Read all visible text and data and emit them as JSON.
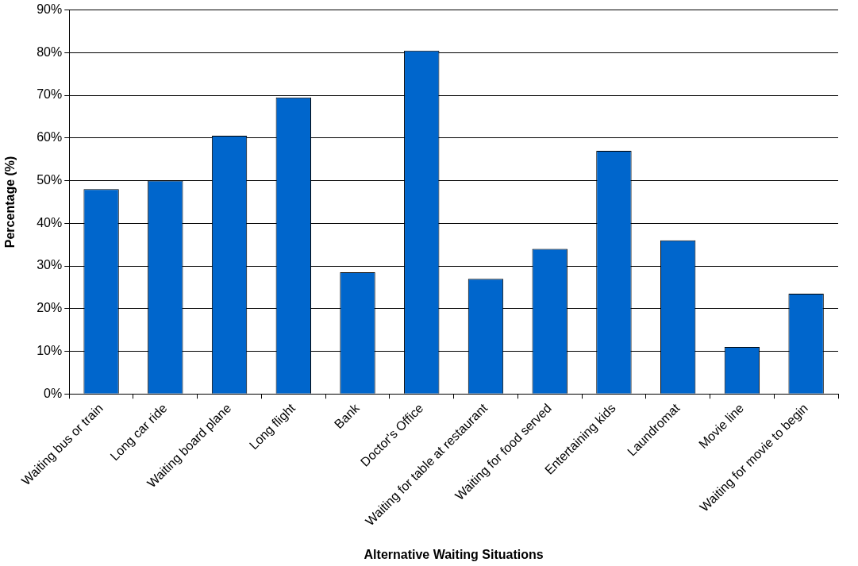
{
  "chart_data": {
    "type": "bar",
    "xlabel": "Alternative Waiting Situations",
    "ylabel": "Percentage (%)",
    "categories": [
      "Waiting bus or train",
      "Long car ride",
      "Waiting board plane",
      "Long flight",
      "Bank",
      "Doctor's Office",
      "Waiting for table at restaurant",
      "Waiting for food served",
      "Entertaining kids",
      "Laundromat",
      "Movie line",
      "Waiting for movie to begin"
    ],
    "values": [
      48,
      50,
      60.5,
      69.5,
      28.5,
      80.5,
      27,
      34,
      57,
      36,
      11,
      23.5
    ],
    "color": "#0066cc",
    "ylim": [
      0,
      90
    ],
    "yticks": [
      {
        "value": 0,
        "label": "0%"
      },
      {
        "value": 10,
        "label": "10%"
      },
      {
        "value": 20,
        "label": "20%"
      },
      {
        "value": 30,
        "label": "30%"
      },
      {
        "value": 40,
        "label": "40%"
      },
      {
        "value": 50,
        "label": "50%"
      },
      {
        "value": 60,
        "label": "60%"
      },
      {
        "value": 70,
        "label": "70%"
      },
      {
        "value": 80,
        "label": "80%"
      },
      {
        "value": 90,
        "label": "90%"
      }
    ],
    "grid": "y",
    "legend": false
  }
}
